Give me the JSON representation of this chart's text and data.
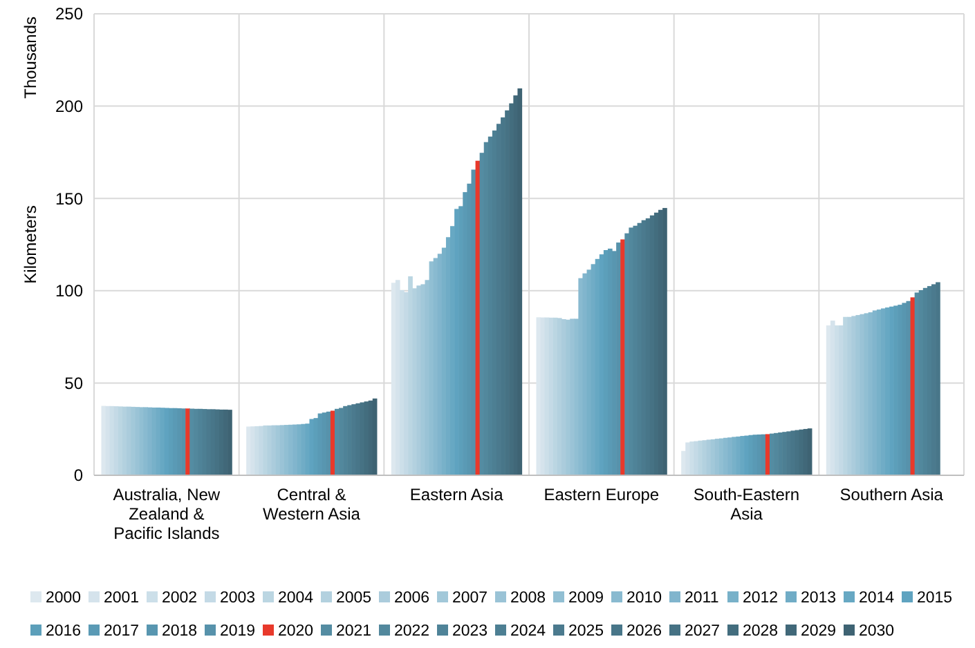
{
  "chart_data": {
    "type": "bar",
    "ylabel": "Kilometers",
    "annotations": [
      "Thousands"
    ],
    "categories": [
      "Australia, New Zealand & Pacific Islands",
      "Central & Western Asia",
      "Eastern Asia",
      "Eastern Europe",
      "South-Eastern Asia",
      "Southern Asia"
    ],
    "ylim": [
      0,
      250
    ],
    "yticks": [
      0,
      50,
      100,
      150,
      200,
      250
    ],
    "grid": true,
    "legend": "bottom",
    "series": [
      {
        "name": "2000",
        "color": "#dde8ef",
        "values": [
          37.6,
          26.4,
          104.3,
          85.6,
          13.2,
          81.2
        ]
      },
      {
        "name": "2001",
        "color": "#d5e3ec",
        "values": [
          37.5,
          26.5,
          105.8,
          85.5,
          17.8,
          83.8
        ]
      },
      {
        "name": "2002",
        "color": "#ccdfe9",
        "values": [
          37.5,
          26.6,
          100.3,
          85.5,
          18.3,
          81.2
        ]
      },
      {
        "name": "2003",
        "color": "#c4dae6",
        "values": [
          37.4,
          26.7,
          99.2,
          85.4,
          18.5,
          81.2
        ]
      },
      {
        "name": "2004",
        "color": "#bbd6e2",
        "values": [
          37.3,
          27,
          107.8,
          85.4,
          18.8,
          85.8
        ]
      },
      {
        "name": "2005",
        "color": "#b3d1df",
        "values": [
          37.2,
          27,
          101.3,
          85.2,
          19,
          85.8
        ]
      },
      {
        "name": "2006",
        "color": "#abccdc",
        "values": [
          37.2,
          27.1,
          102.8,
          84.6,
          19.3,
          86.3
        ]
      },
      {
        "name": "2007",
        "color": "#a2c8d9",
        "values": [
          37.1,
          27.1,
          103.5,
          84.3,
          19.5,
          86.8
        ]
      },
      {
        "name": "2008",
        "color": "#9ac3d6",
        "values": [
          37,
          27.2,
          105.8,
          84.8,
          19.8,
          87.3
        ]
      },
      {
        "name": "2009",
        "color": "#91bfd3",
        "values": [
          36.9,
          27.3,
          115.9,
          84.8,
          20,
          87.8
        ]
      },
      {
        "name": "2010",
        "color": "#89bad0",
        "values": [
          36.9,
          27.4,
          117.7,
          106.8,
          20.3,
          88.3
        ]
      },
      {
        "name": "2011",
        "color": "#81b5cd",
        "values": [
          36.8,
          27.5,
          120,
          109.4,
          20.5,
          89.3
        ]
      },
      {
        "name": "2012",
        "color": "#78b1c9",
        "values": [
          36.7,
          27.6,
          123.3,
          111.4,
          20.8,
          89.8
        ]
      },
      {
        "name": "2013",
        "color": "#70acc6",
        "values": [
          36.7,
          27.8,
          129,
          114.4,
          21,
          90.4
        ]
      },
      {
        "name": "2014",
        "color": "#67a8c3",
        "values": [
          36.6,
          28,
          135,
          117.2,
          21.3,
          90.9
        ]
      },
      {
        "name": "2015",
        "color": "#5fa3c0",
        "values": [
          36.5,
          30.5,
          144.3,
          119.7,
          21.5,
          91.4
        ]
      },
      {
        "name": "2016",
        "color": "#5c9fba",
        "values": [
          36.4,
          31,
          145.8,
          122,
          21.8,
          91.9
        ]
      },
      {
        "name": "2017",
        "color": "#5a9ab5",
        "values": [
          36.4,
          33.5,
          153.4,
          122.8,
          22,
          92.4
        ]
      },
      {
        "name": "2018",
        "color": "#5896b0",
        "values": [
          36.3,
          34,
          158,
          121.5,
          22.1,
          93.4
        ]
      },
      {
        "name": "2019",
        "color": "#5792ab",
        "values": [
          36.2,
          34.5,
          165.6,
          126.1,
          22.2,
          94.4
        ]
      },
      {
        "name": "2020",
        "color": "#e8392b",
        "values": [
          36.2,
          35,
          170.4,
          127.8,
          22.3,
          96.4
        ]
      },
      {
        "name": "2021",
        "color": "#548ca2",
        "values": [
          36.1,
          36,
          174.7,
          131.1,
          22.6,
          99
        ]
      },
      {
        "name": "2022",
        "color": "#52889d",
        "values": [
          36,
          36.5,
          180.5,
          134.2,
          22.9,
          100.3
        ]
      },
      {
        "name": "2023",
        "color": "#4f8398",
        "values": [
          36,
          37.5,
          183.5,
          135.2,
          23.2,
          101.5
        ]
      },
      {
        "name": "2024",
        "color": "#4d7f93",
        "values": [
          35.9,
          38,
          186.8,
          136.7,
          23.5,
          102.5
        ]
      },
      {
        "name": "2025",
        "color": "#4b7a8e",
        "values": [
          35.8,
          38.5,
          190.4,
          138.2,
          23.8,
          103.5
        ]
      },
      {
        "name": "2026",
        "color": "#487689",
        "values": [
          35.8,
          39,
          193.9,
          139.2,
          24.2,
          104.6
        ]
      },
      {
        "name": "2027",
        "color": "#467284",
        "values": [
          35.7,
          39.5,
          197.7,
          140.8,
          24.5,
          null
        ]
      },
      {
        "name": "2028",
        "color": "#436d7e",
        "values": [
          35.6,
          40,
          201.5,
          142.3,
          24.8,
          null
        ]
      },
      {
        "name": "2029",
        "color": "#416879",
        "values": [
          35.6,
          40.5,
          205.8,
          143.8,
          25.1,
          null
        ]
      },
      {
        "name": "2030",
        "color": "#3e6373",
        "values": [
          35.5,
          41.6,
          209.6,
          144.8,
          25.4,
          null
        ]
      }
    ]
  }
}
